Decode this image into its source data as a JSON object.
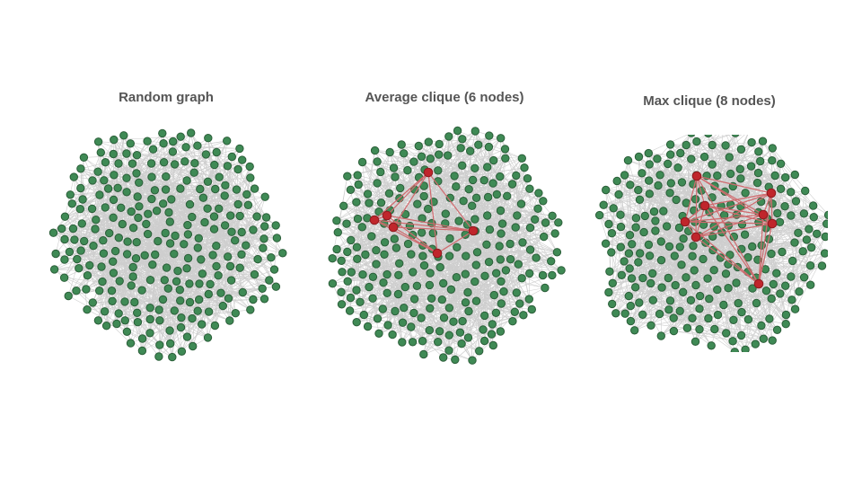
{
  "colors": {
    "background": "#ffffff",
    "title_text": "#555555",
    "edge_gray": "#c9c9c9",
    "node_green": "#3f8a55",
    "node_green_stroke": "#2b5e39",
    "clique_red": "#c0262c",
    "clique_edge_red": "#d06a6e"
  },
  "panels": [
    {
      "title": "Random graph",
      "clique_size": 0
    },
    {
      "title": "Average clique (6 nodes)",
      "clique_size": 6
    },
    {
      "title": "Max clique (8 nodes)",
      "clique_size": 8
    }
  ]
}
